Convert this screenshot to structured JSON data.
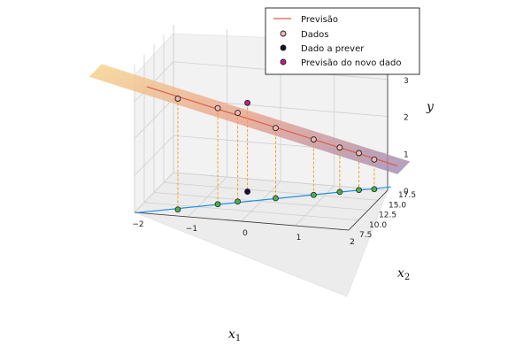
{
  "chart_data": {
    "type": "scatter",
    "subtype": "3d-scatter-with-regression-plane",
    "xlabel": "x",
    "xlabel_sub": "1",
    "ylabel": "x",
    "ylabel_sub": "2",
    "zlabel": "y",
    "x_ticks": [
      "−2",
      "−1",
      "0",
      "1",
      "2"
    ],
    "y_ticks": [
      "7.5",
      "10.0",
      "12.5",
      "15.0",
      "17.5"
    ],
    "z_ticks": [
      "0",
      "1",
      "2",
      "3"
    ],
    "xlim": [
      -2,
      2
    ],
    "ylim": [
      7.5,
      17.5
    ],
    "zlim": [
      0,
      4
    ],
    "grid": true,
    "legend_position": "top-right",
    "legend": [
      "Previsão",
      "Dados",
      "Dado a prever",
      "Previsão do novo dado"
    ],
    "colors": {
      "prediction_line": "#d9604d",
      "data_fill": "#f4b6b4",
      "new_data_fill": "#1a0b3b",
      "new_prediction_fill": "#c41f8a",
      "projection_line": "#1e90e0",
      "projection_points": "#4caf50",
      "drop_lines": "#f0a020",
      "plane_start": "#f6d590",
      "plane_mid": "#e8a08a",
      "plane_end": "#9b86b4"
    },
    "series": [
      {
        "name": "Dados",
        "points": [
          {
            "x": -1.3,
            "y": 9.0,
            "z": 3.0
          },
          {
            "x": -0.7,
            "y": 11.0,
            "z": 2.6
          },
          {
            "x": -0.4,
            "y": 12.0,
            "z": 2.4
          },
          {
            "x": 0.2,
            "y": 13.5,
            "z": 1.9
          },
          {
            "x": 0.8,
            "y": 15.0,
            "z": 1.5
          },
          {
            "x": 1.2,
            "y": 16.2,
            "z": 1.2
          },
          {
            "x": 1.5,
            "y": 17.0,
            "z": 1.0
          },
          {
            "x": 1.75,
            "y": 17.5,
            "z": 0.8
          }
        ]
      },
      {
        "name": "Dado a prever",
        "points": [
          {
            "x": -0.4,
            "y": 14.5,
            "z": 0.0
          }
        ]
      },
      {
        "name": "Previsão do novo dado",
        "points": [
          {
            "x": -0.4,
            "y": 14.5,
            "z": 2.4
          }
        ]
      }
    ]
  }
}
